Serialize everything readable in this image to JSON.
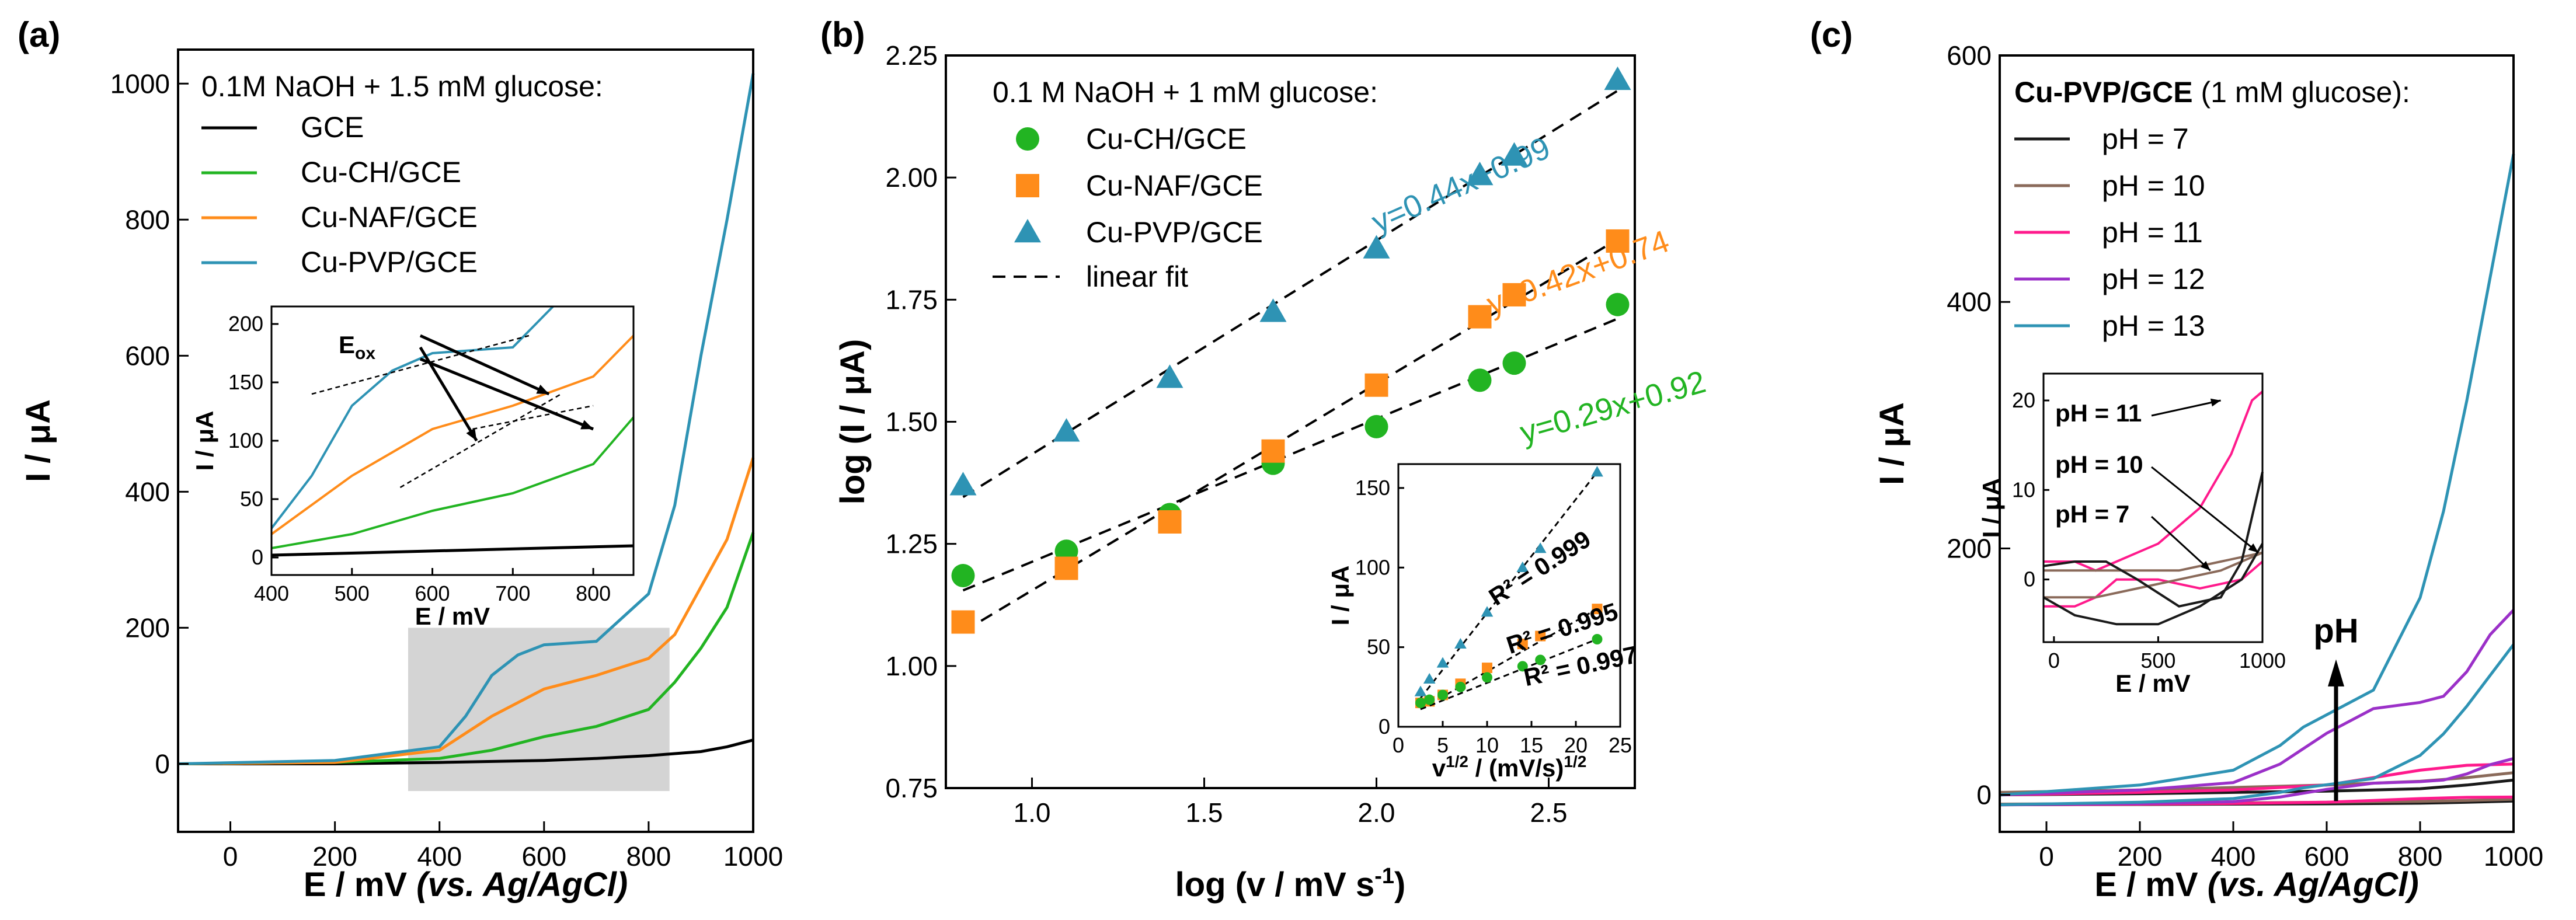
{
  "colors": {
    "GCE": "#000000",
    "CH": "#22b422",
    "NAF": "#ff8c1a",
    "PVP": "#2e93b4",
    "pH7": "#1a1a1a",
    "pH10": "#8a6a5a",
    "pH11": "#ff1a8c",
    "pH12": "#9b30c8",
    "pH13": "#2e93b4",
    "shade": "#d4d4d4"
  },
  "chart_data": [
    {
      "panel": "(a)",
      "type": "line",
      "xlabel": "E / mV",
      "xlabel_italic": "(vs. Ag/AgCl)",
      "ylabel": "I / μA",
      "xlim": [
        -100,
        1000
      ],
      "ylim": [
        -100,
        1050
      ],
      "xticks": [
        0,
        200,
        400,
        600,
        800,
        1000
      ],
      "yticks": [
        0,
        200,
        400,
        600,
        800,
        1000
      ],
      "legend_title": "0.1M NaOH + 1.5 mM glucose:",
      "legend_position": "top-left",
      "series": [
        {
          "name": "GCE",
          "color_key": "GCE",
          "x": [
            -100,
            200,
            400,
            600,
            700,
            800,
            900,
            950,
            1000
          ],
          "y": [
            0,
            0,
            2,
            5,
            8,
            12,
            18,
            25,
            35
          ]
        },
        {
          "name": "Cu-CH/GCE",
          "color_key": "CH",
          "x": [
            -100,
            200,
            400,
            500,
            600,
            700,
            800,
            850,
            900,
            950,
            1000
          ],
          "y": [
            0,
            2,
            8,
            20,
            40,
            55,
            80,
            120,
            170,
            230,
            340
          ]
        },
        {
          "name": "Cu-NAF/GCE",
          "color_key": "NAF",
          "x": [
            -100,
            200,
            400,
            500,
            600,
            700,
            800,
            850,
            900,
            950,
            1000
          ],
          "y": [
            0,
            2,
            20,
            70,
            110,
            130,
            155,
            190,
            260,
            330,
            450
          ]
        },
        {
          "name": "Cu-PVP/GCE",
          "color_key": "PVP",
          "x": [
            -100,
            200,
            400,
            450,
            500,
            550,
            600,
            700,
            800,
            850,
            900,
            950,
            1000
          ],
          "y": [
            0,
            5,
            25,
            70,
            130,
            160,
            175,
            180,
            250,
            380,
            600,
            800,
            1015
          ]
        }
      ],
      "inset": {
        "xlabel": "E / mV",
        "ylabel": "I / μA",
        "xlim": [
          400,
          850
        ],
        "ylim": [
          -15,
          215
        ],
        "xticks": [
          400,
          500,
          600,
          700,
          800
        ],
        "yticks": [
          0,
          50,
          100,
          150,
          200
        ],
        "annotation": "E",
        "annotation_sub": "ox"
      },
      "shaded_region": {
        "x": [
          340,
          840
        ],
        "y": [
          -40,
          200
        ]
      }
    },
    {
      "panel": "(b)",
      "type": "scatter",
      "xlabel": "log (v / mV s",
      "xlabel_sup": "-1",
      "xlabel_end": ")",
      "ylabel": "log (I / μA)",
      "xlim": [
        0.75,
        2.75
      ],
      "ylim": [
        0.75,
        2.25
      ],
      "xticks": [
        1.0,
        1.5,
        2.0,
        2.5
      ],
      "xtick_labels": [
        "1.0",
        "1.5",
        "2.0",
        "2.5"
      ],
      "yticks": [
        0.75,
        1.0,
        1.25,
        1.5,
        1.75,
        2.0,
        2.25
      ],
      "ytick_labels": [
        "0.75",
        "1.00",
        "1.25",
        "1.50",
        "1.75",
        "2.00",
        "2.25"
      ],
      "legend_title": "0.1 M NaOH + 1 mM glucose:",
      "legend_position": "top-left",
      "series": [
        {
          "name": "Cu-CH/GCE",
          "marker": "circle",
          "color_key": "CH",
          "x": [
            0.8,
            1.1,
            1.4,
            1.7,
            2.0,
            2.3,
            2.4,
            2.7
          ],
          "y": [
            1.185,
            1.235,
            1.31,
            1.415,
            1.49,
            1.585,
            1.62,
            1.74
          ]
        },
        {
          "name": "Cu-NAF/GCE",
          "marker": "square",
          "color_key": "NAF",
          "x": [
            0.8,
            1.1,
            1.4,
            1.7,
            2.0,
            2.3,
            2.4,
            2.7
          ],
          "y": [
            1.09,
            1.2,
            1.295,
            1.44,
            1.575,
            1.715,
            1.76,
            1.87
          ]
        },
        {
          "name": "Cu-PVP/GCE",
          "marker": "triangle",
          "color_key": "PVP",
          "x": [
            0.8,
            1.1,
            1.4,
            1.7,
            2.0,
            2.3,
            2.4,
            2.7
          ],
          "y": [
            1.37,
            1.48,
            1.59,
            1.725,
            1.855,
            2.005,
            2.045,
            2.2
          ]
        }
      ],
      "linear_fit_label": "linear fit",
      "fit_labels": [
        {
          "text": "y=0.44x+0.99",
          "color_key": "PVP",
          "slope": 0.44,
          "intercept": 0.99
        },
        {
          "text": "y=0.42x+0.74",
          "color_key": "NAF",
          "slope": 0.42,
          "intercept": 0.74
        },
        {
          "text": "y=0.29x+0.92",
          "color_key": "CH",
          "slope": 0.29,
          "intercept": 0.92
        }
      ],
      "inset": {
        "xlabel": "v",
        "xlabel_sup": "1/2",
        "xlabel_mid": " / (mV/s)",
        "xlabel_sup2": "1/2",
        "ylabel": "I / μA",
        "xlim": [
          0,
          25
        ],
        "ylim": [
          0,
          165
        ],
        "xticks": [
          0,
          5,
          10,
          15,
          20,
          25
        ],
        "yticks": [
          0,
          50,
          100,
          150
        ],
        "series": [
          {
            "color_key": "PVP",
            "marker": "triangle",
            "x": [
              2.5,
              3.5,
              5,
              7,
              10,
              14,
              16,
              22.4
            ],
            "y": [
              22,
              30,
              40,
              52,
              72,
              100,
              112,
              160
            ],
            "r2": "R² = 0.999"
          },
          {
            "color_key": "NAF",
            "marker": "square",
            "x": [
              2.5,
              3.5,
              5,
              7,
              10,
              14,
              16,
              22.4
            ],
            "y": [
              15,
              16,
              20,
              27,
              37,
              52,
              57,
              74
            ],
            "r2": "R² = 0.995"
          },
          {
            "color_key": "CH",
            "marker": "circle",
            "x": [
              2.5,
              3.5,
              5,
              7,
              10,
              14,
              16,
              22.4
            ],
            "y": [
              15,
              17,
              20,
              25,
              31,
              38,
              42,
              55
            ],
            "r2": "R² = 0.997"
          }
        ]
      }
    },
    {
      "panel": "(c)",
      "type": "line",
      "xlabel": "E / mV",
      "xlabel_italic": "(vs. Ag/AgCl)",
      "ylabel": "I / μA",
      "xlim": [
        -100,
        1000
      ],
      "ylim": [
        -30,
        600
      ],
      "xticks": [
        0,
        200,
        400,
        600,
        800,
        1000
      ],
      "yticks": [
        0,
        200,
        400,
        600
      ],
      "legend_title_bold": "Cu-PVP/GCE",
      "legend_title_rest": " (1 mM glucose):",
      "legend_position": "top-left",
      "arrow_label": "pH",
      "series": [
        {
          "name": "pH = 7",
          "color_key": "pH7",
          "x": [
            -100,
            200,
            400,
            600,
            800,
            900,
            1000
          ],
          "y": [
            0,
            1,
            2,
            3,
            5,
            8,
            12
          ]
        },
        {
          "name": "pH = 10",
          "color_key": "pH10",
          "x": [
            -100,
            200,
            400,
            600,
            800,
            900,
            1000
          ],
          "y": [
            2,
            4,
            6,
            8,
            11,
            14,
            18
          ]
        },
        {
          "name": "pH = 11",
          "color_key": "pH11",
          "x": [
            -100,
            200,
            400,
            600,
            700,
            800,
            900,
            1000
          ],
          "y": [
            0,
            2,
            4,
            8,
            14,
            20,
            24,
            25
          ]
        },
        {
          "name": "pH = 12",
          "color_key": "pH12",
          "x": [
            -100,
            200,
            400,
            500,
            600,
            700,
            800,
            850,
            900,
            950,
            1000
          ],
          "y": [
            0,
            4,
            10,
            25,
            50,
            70,
            75,
            80,
            100,
            130,
            150
          ]
        },
        {
          "name": "pH = 13",
          "color_key": "pH13",
          "x": [
            -100,
            200,
            400,
            500,
            550,
            600,
            700,
            800,
            850,
            900,
            950,
            1000
          ],
          "y": [
            0,
            8,
            20,
            40,
            55,
            65,
            85,
            160,
            230,
            320,
            420,
            520
          ]
        }
      ],
      "inset": {
        "xlabel": "E / mV",
        "ylabel": "I / μA",
        "xlim": [
          -50,
          1000
        ],
        "ylim": [
          -7,
          23
        ],
        "xticks": [
          0,
          500,
          1000
        ],
        "yticks": [
          0,
          10,
          20
        ],
        "labels": [
          {
            "text": "pH = 11",
            "color_key": "pH11"
          },
          {
            "text": "pH = 10",
            "color_key": "pH10"
          },
          {
            "text": "pH = 7",
            "color_key": "pH7"
          }
        ]
      }
    }
  ]
}
